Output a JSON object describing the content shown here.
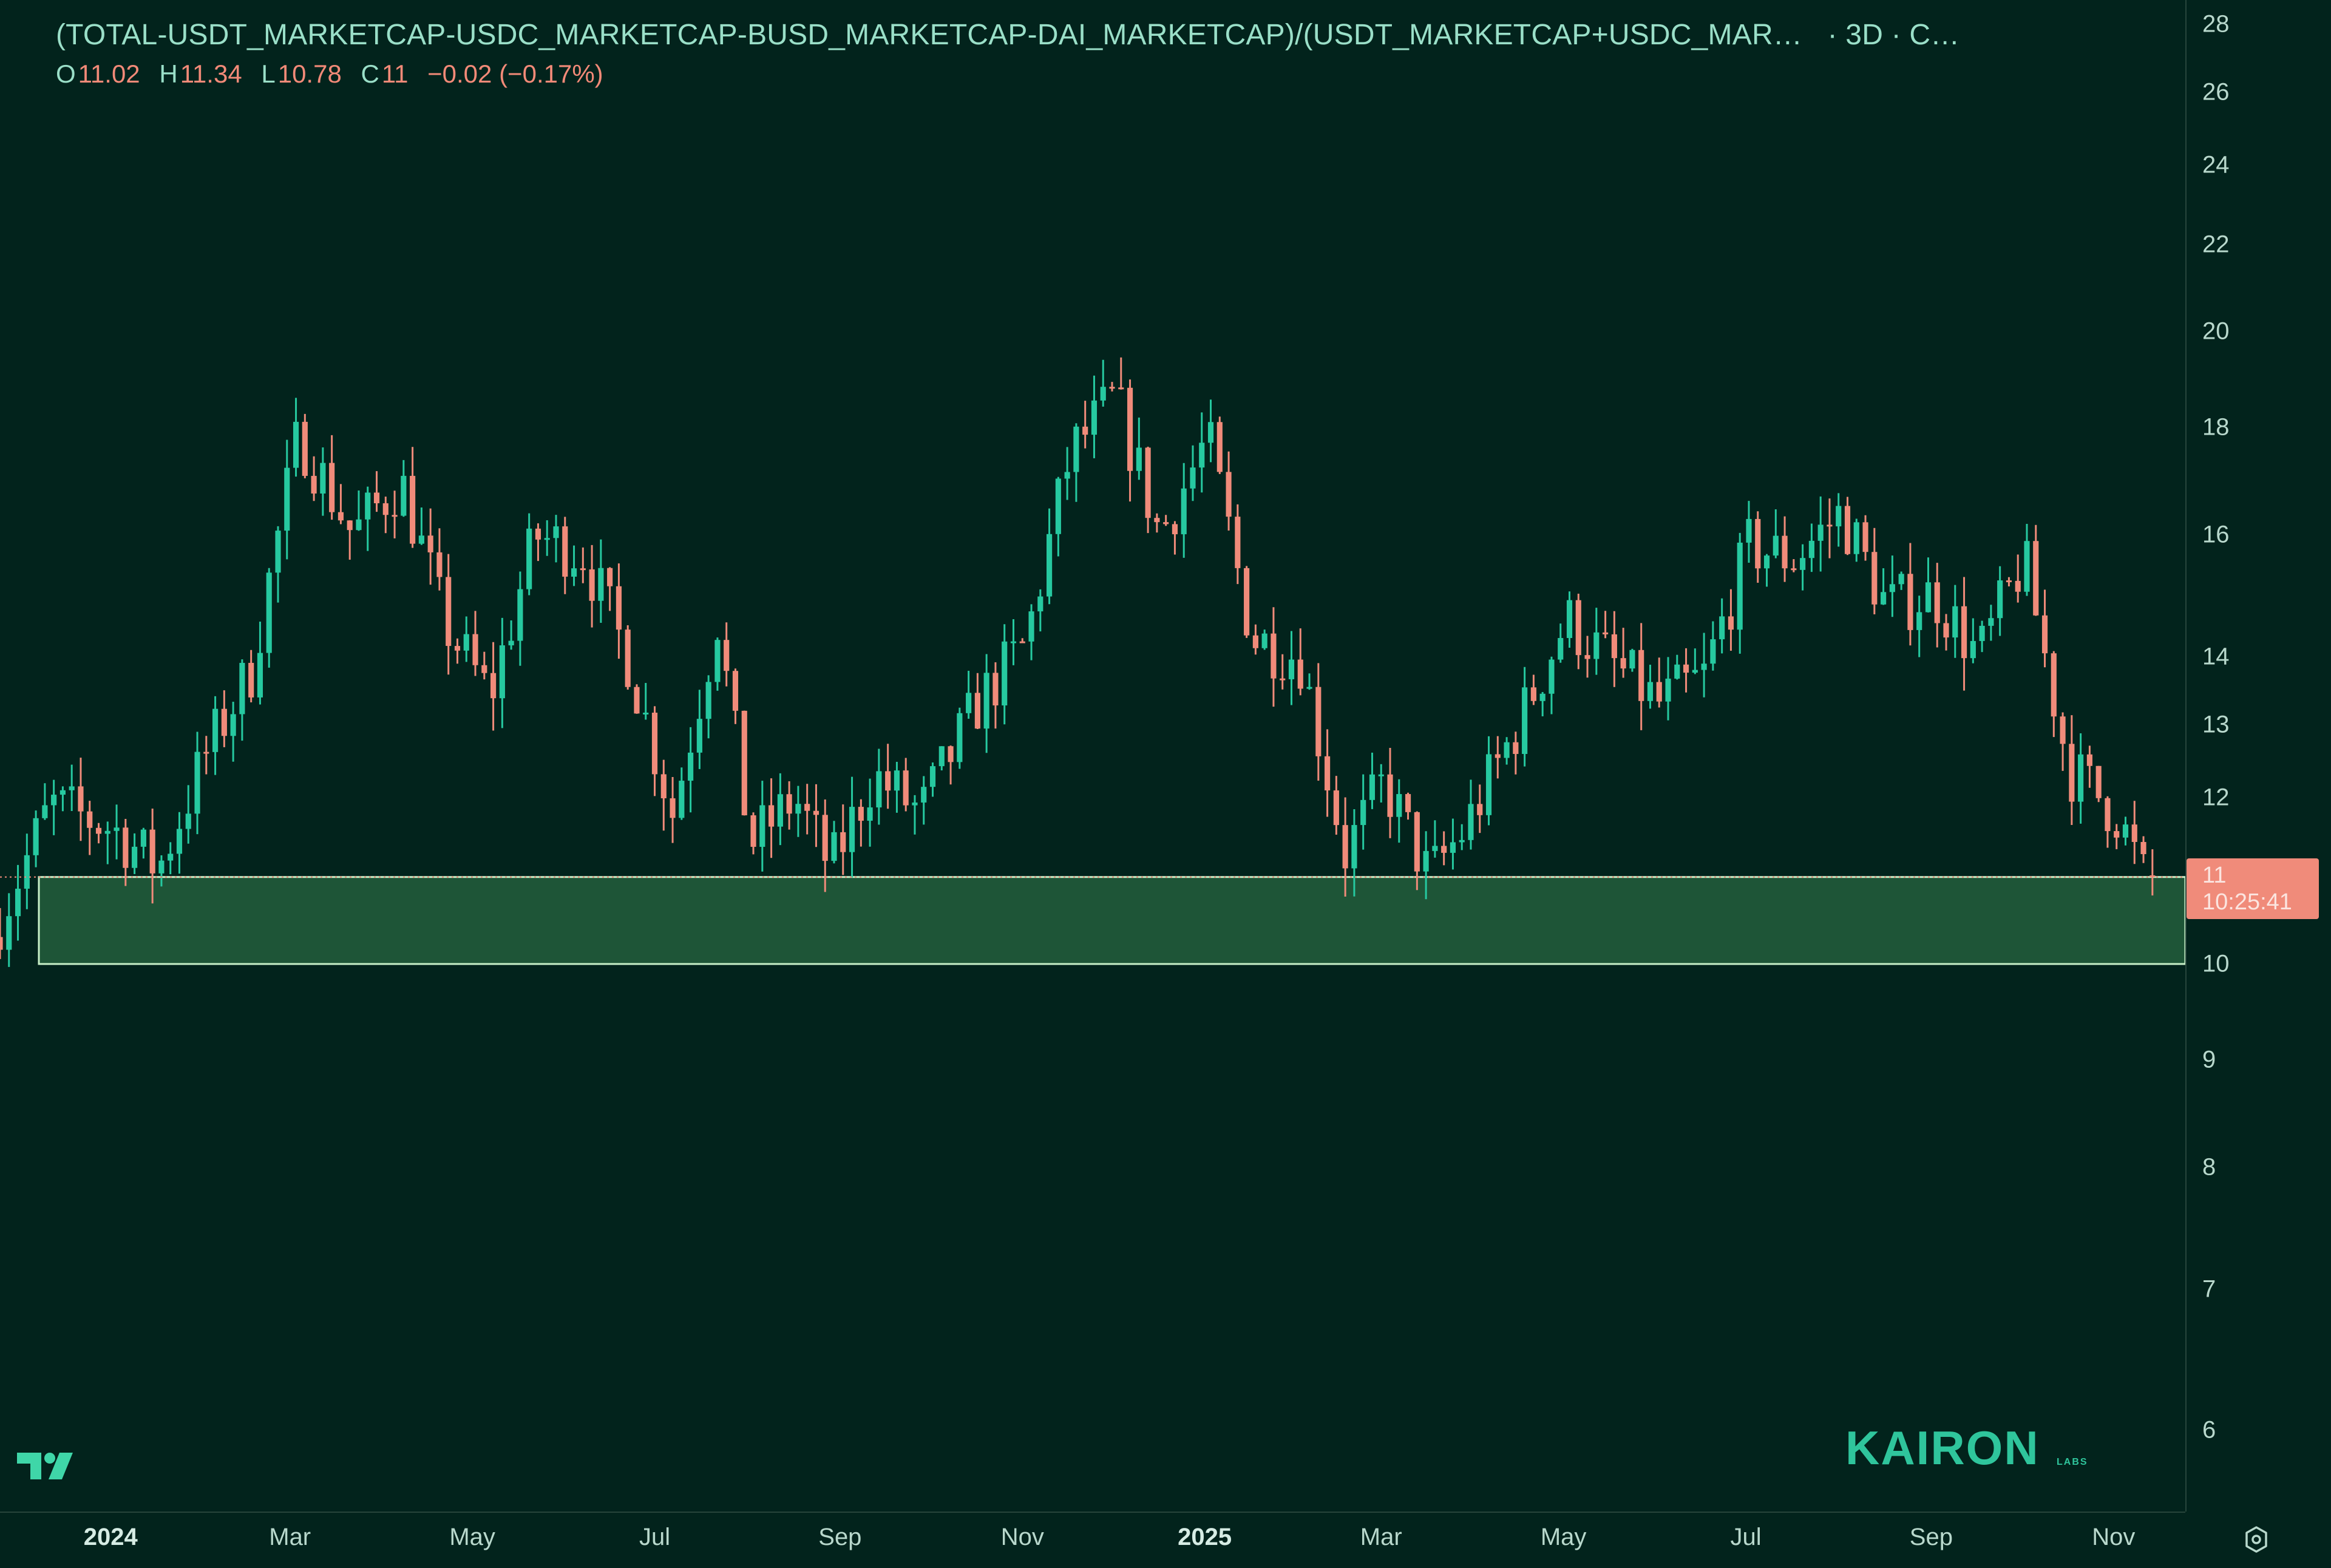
{
  "header": {
    "symbol": "(TOTAL-USDT_MARKETCAP-USDC_MARKETCAP-BUSD_MARKETCAP-DAI_MARKETCAP)/(USDT_MARKETCAP+USDC_MAR…",
    "interval": "· 3D · C…",
    "ohlc": {
      "o_label": "O",
      "o_value": "11.02",
      "h_label": "H",
      "h_value": "11.34",
      "l_label": "L",
      "l_value": "10.78",
      "c_label": "C",
      "c_value": "11",
      "change": "−0.02 (−0.17%)"
    }
  },
  "price_scale": {
    "ticks": [
      "28",
      "26",
      "24",
      "22",
      "20",
      "18",
      "16",
      "14",
      "13",
      "12",
      "10",
      "9",
      "8",
      "7",
      "6"
    ],
    "last_price": "11",
    "countdown": "10:25:41"
  },
  "time_scale": {
    "ticks": [
      {
        "label": "2024",
        "year": true
      },
      {
        "label": "Mar",
        "year": false
      },
      {
        "label": "May",
        "year": false
      },
      {
        "label": "Jul",
        "year": false
      },
      {
        "label": "Sep",
        "year": false
      },
      {
        "label": "Nov",
        "year": false
      },
      {
        "label": "2025",
        "year": true
      },
      {
        "label": "Mar",
        "year": false
      },
      {
        "label": "May",
        "year": false
      },
      {
        "label": "Jul",
        "year": false
      },
      {
        "label": "Sep",
        "year": false
      },
      {
        "label": "Nov",
        "year": false
      }
    ]
  },
  "chart_data": {
    "type": "candlestick",
    "scale": "log",
    "ylim": [
      5.5,
      29
    ],
    "xlim": [
      "2023-11-25",
      "2025-11-25"
    ],
    "interval": "3D",
    "colors": {
      "up": "#26c9a0",
      "down": "#f08b7a",
      "zone_fill": "#1e5537",
      "zone_border": "#c8f0c8",
      "background": "#02231c"
    },
    "support_zone": {
      "x_start": "2023-12-08",
      "low": 10.0,
      "high": 11.0
    },
    "last_price_line": 11.0,
    "anchors": [
      [
        "2023-11-25",
        10.3
      ],
      [
        "2023-12-15",
        11.9
      ],
      [
        "2024-01-05",
        11.6
      ],
      [
        "2024-01-20",
        11.1
      ],
      [
        "2024-02-05",
        12.6
      ],
      [
        "2024-02-20",
        13.8
      ],
      [
        "2024-03-07",
        17.9
      ],
      [
        "2024-03-25",
        16.0
      ],
      [
        "2024-04-10",
        17.0
      ],
      [
        "2024-04-25",
        14.5
      ],
      [
        "2024-05-10",
        13.4
      ],
      [
        "2024-05-25",
        16.0
      ],
      [
        "2024-06-10",
        15.7
      ],
      [
        "2024-06-25",
        14.0
      ],
      [
        "2024-07-10",
        11.8
      ],
      [
        "2024-07-25",
        14.6
      ],
      [
        "2024-08-05",
        11.4
      ],
      [
        "2024-08-20",
        12.0
      ],
      [
        "2024-09-01",
        11.1
      ],
      [
        "2024-09-15",
        12.3
      ],
      [
        "2024-10-01",
        11.8
      ],
      [
        "2024-10-20",
        13.3
      ],
      [
        "2024-11-05",
        14.2
      ],
      [
        "2024-11-20",
        17.5
      ],
      [
        "2024-12-05",
        18.6
      ],
      [
        "2024-12-20",
        16.0
      ],
      [
        "2025-01-05",
        17.8
      ],
      [
        "2025-01-20",
        14.3
      ],
      [
        "2025-02-05",
        14.0
      ],
      [
        "2025-02-20",
        11.3
      ],
      [
        "2025-03-05",
        12.2
      ],
      [
        "2025-03-20",
        11.0
      ],
      [
        "2025-04-01",
        11.6
      ],
      [
        "2025-04-20",
        13.1
      ],
      [
        "2025-05-05",
        14.6
      ],
      [
        "2025-05-20",
        13.9
      ],
      [
        "2025-06-05",
        13.3
      ],
      [
        "2025-06-20",
        13.7
      ],
      [
        "2025-07-05",
        15.8
      ],
      [
        "2025-07-20",
        15.6
      ],
      [
        "2025-08-05",
        16.4
      ],
      [
        "2025-08-20",
        14.8
      ],
      [
        "2025-09-05",
        15.0
      ],
      [
        "2025-09-20",
        14.0
      ],
      [
        "2025-10-05",
        15.6
      ],
      [
        "2025-10-20",
        12.4
      ],
      [
        "2025-11-05",
        11.8
      ],
      [
        "2025-11-14",
        11.0
      ]
    ],
    "last_candle": {
      "open": 11.02,
      "high": 11.34,
      "low": 10.78,
      "close": 11.0
    }
  },
  "brand": {
    "name": "KAIRON",
    "sub": "LABS"
  }
}
